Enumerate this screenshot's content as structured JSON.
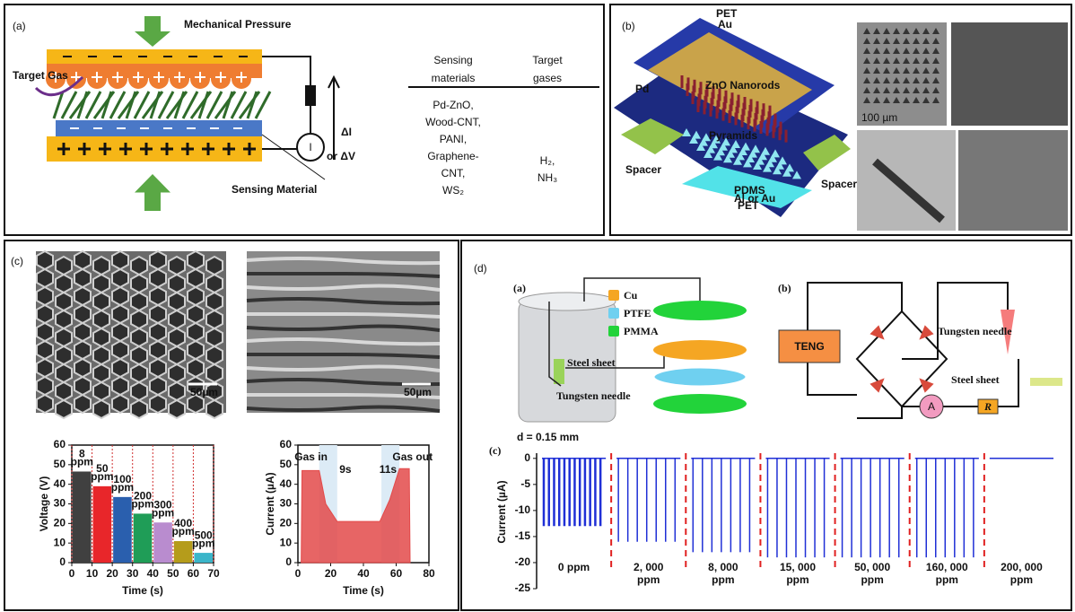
{
  "panel_a": {
    "label": "(a)",
    "pressure": "Mechanical Pressure",
    "gas": "Target Gas",
    "meter": "I",
    "signal": [
      "ΔI",
      "or ΔV"
    ],
    "material": "Sensing Material",
    "table": {
      "headers": [
        [
          "Sensing",
          "materials"
        ],
        [
          "Target",
          "gases"
        ]
      ],
      "materials": [
        "Pd-ZnO,",
        "Wood-CNT,",
        "PANI,",
        "Graphene-",
        "CNT,",
        "WS₂"
      ],
      "targets": [
        "H₂,",
        "NH₃"
      ]
    }
  },
  "panel_b": {
    "label": "(b)",
    "layers": [
      "PET",
      "Au",
      "Pd",
      "ZnO Nanorods",
      "Pyramids",
      "Spacer",
      "Spacer",
      "PDMS",
      "Al or Au",
      "PET"
    ],
    "scale_bar": "100 µm"
  },
  "panel_c": {
    "label": "(c)",
    "scale_bars": [
      "50µm",
      "50µm"
    ],
    "voltage_chart": {
      "type": "bar",
      "xlabel": "Time (s)",
      "ylabel": "Voltage (V)",
      "bins": [
        0,
        10,
        20,
        30,
        40,
        50,
        60,
        70
      ],
      "values": [
        46.5,
        39,
        33.5,
        25,
        20.5,
        11,
        5
      ],
      "colors": [
        "#404040",
        "#e8262a",
        "#2a5fae",
        "#1f9d57",
        "#b98ccf",
        "#b59c1b",
        "#3bb5c9"
      ],
      "bar_labels": [
        [
          "8",
          "ppm"
        ],
        [
          "50",
          "ppm"
        ],
        [
          "100",
          "ppm"
        ],
        [
          "200",
          "ppm"
        ],
        [
          "300",
          "ppm"
        ],
        [
          "400",
          "ppm"
        ],
        [
          "500",
          "ppm"
        ]
      ],
      "xlim": [
        0,
        70
      ],
      "ylim": [
        0,
        60
      ],
      "xticks": [
        0,
        10,
        20,
        30,
        40,
        50,
        60,
        70
      ],
      "yticks": [
        0,
        10,
        20,
        30,
        40,
        50,
        60
      ]
    },
    "current_chart": {
      "type": "area",
      "xlabel": "Time (s)",
      "ylabel": "Current (µA)",
      "color": "#e34a4a",
      "x": [
        2,
        2.5,
        13,
        17,
        24,
        50,
        56,
        62,
        68,
        68.5
      ],
      "values": [
        0,
        47,
        47,
        30,
        21,
        21,
        32,
        48,
        48,
        0
      ],
      "annotations": [
        "Gas in",
        "9s",
        "11s",
        "Gas out"
      ],
      "xlim": [
        0,
        80
      ],
      "ylim": [
        0,
        60
      ],
      "xticks": [
        0,
        20,
        40,
        60,
        80
      ],
      "yticks": [
        0,
        10,
        20,
        30,
        40,
        50,
        60
      ]
    }
  },
  "panel_d": {
    "label": "(d)",
    "diagram_a": {
      "label": "(a)",
      "legend": [
        {
          "name": "Cu",
          "color": "#f5a623"
        },
        {
          "name": "PTFE",
          "color": "#6fd0f0"
        },
        {
          "name": "PMMA",
          "color": "#22d33a"
        }
      ],
      "parts": [
        "Steel sheet",
        "Tungsten needle"
      ]
    },
    "diagram_b": {
      "label": "(b)",
      "source": "TENG",
      "needle": "Tungsten needle",
      "sheet": "Steel sheet",
      "ammeter": "A",
      "resistor": "R"
    },
    "chart": {
      "type": "spikes",
      "label": "(c)",
      "subtitle": "d = 0.15 mm",
      "ylabel": "Current (µA)",
      "color": "#1f2fd6",
      "ylim": [
        -25,
        1
      ],
      "yticks": [
        0,
        -5,
        -10,
        -15,
        -20,
        -25
      ],
      "segments": [
        {
          "name": [
            "0 ppm"
          ],
          "value": -13
        },
        {
          "name": [
            "2, 000",
            "ppm"
          ],
          "value": -16
        },
        {
          "name": [
            "8, 000",
            "ppm"
          ],
          "value": -18
        },
        {
          "name": [
            "15, 000",
            "ppm"
          ],
          "value": -19
        },
        {
          "name": [
            "50, 000",
            "ppm"
          ],
          "value": -19
        },
        {
          "name": [
            "160, 000",
            "ppm"
          ],
          "value": -19
        },
        {
          "name": [
            "200, 000",
            "ppm"
          ],
          "value": 0
        }
      ]
    }
  }
}
